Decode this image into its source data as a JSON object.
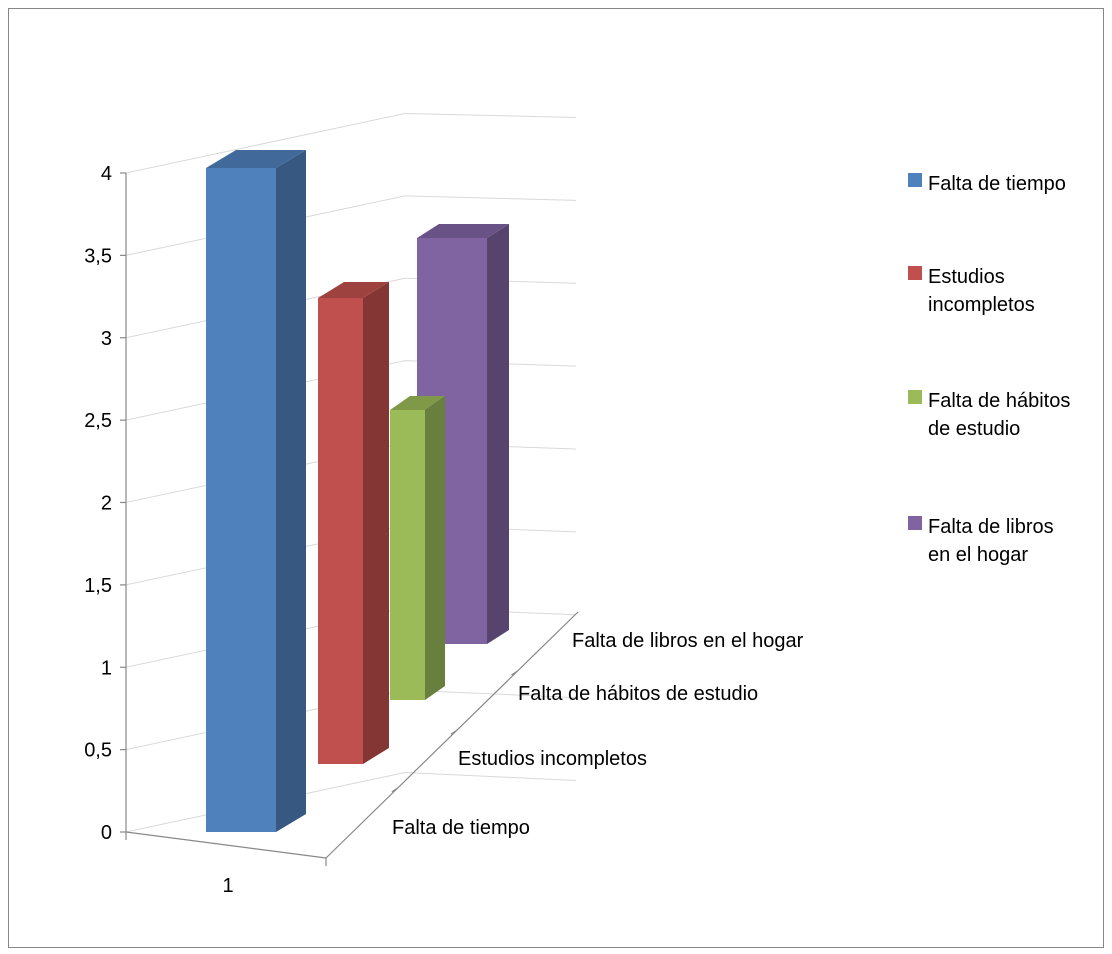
{
  "chart_data": {
    "type": "bar",
    "style": "3d-clustered-column",
    "title": "",
    "xlabel": "",
    "ylabel": "",
    "ylim": [
      0,
      4
    ],
    "yticks": [
      "0",
      "0,5",
      "1",
      "1,5",
      "2",
      "2,5",
      "3",
      "3,5",
      "4"
    ],
    "categories": [
      "1"
    ],
    "depth_labels": [
      "Falta de tiempo",
      "Estudios incompletos",
      "Falta de hábitos de estudio",
      "Falta de libros en el hogar"
    ],
    "grid": true,
    "legend_position": "right",
    "series": [
      {
        "name": "Falta de tiempo",
        "values": [
          4
        ],
        "color": "#4F81BD"
      },
      {
        "name": "Estudios incompletos",
        "values": [
          3
        ],
        "color": "#C0504D"
      },
      {
        "name": "Falta de hábitos de estudio",
        "values": [
          2
        ],
        "color": "#9BBB59"
      },
      {
        "name": "Falta de libros en el hogar",
        "values": [
          3
        ],
        "color": "#8064A2"
      }
    ]
  },
  "legend": {
    "items": [
      {
        "lines": [
          "Falta de tiempo"
        ]
      },
      {
        "lines": [
          "Estudios",
          "incompletos"
        ]
      },
      {
        "lines": [
          "Falta de hábitos",
          "de estudio"
        ]
      },
      {
        "lines": [
          "Falta de libros",
          "en el hogar"
        ]
      }
    ]
  }
}
